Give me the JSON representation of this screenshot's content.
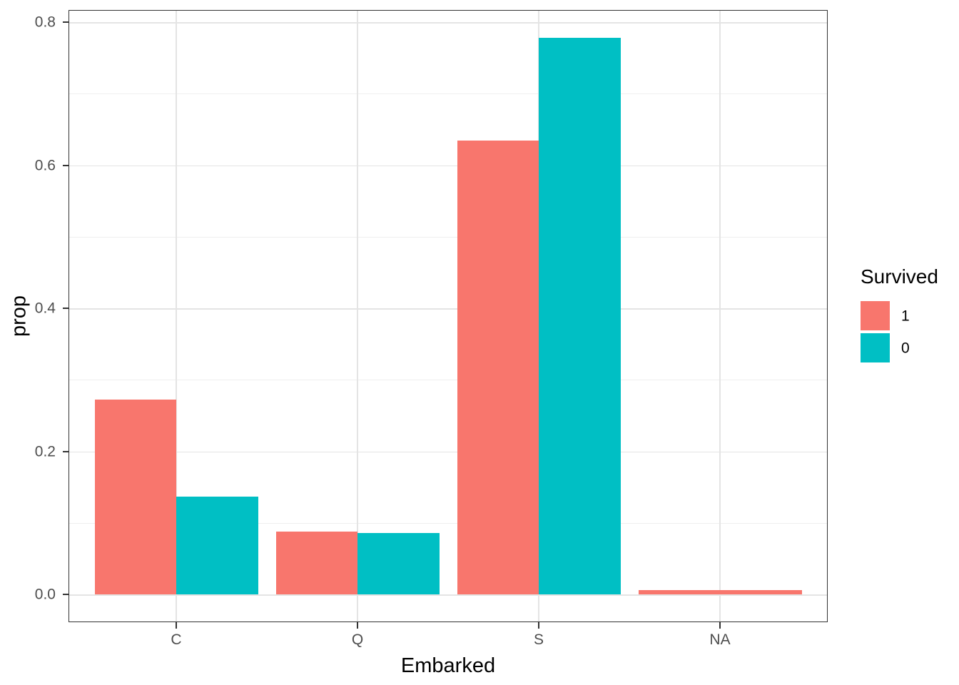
{
  "chart_data": {
    "type": "bar",
    "title": "",
    "xlabel": "Embarked",
    "ylabel": "prop",
    "categories": [
      "C",
      "Q",
      "S",
      "NA"
    ],
    "series": [
      {
        "name": "1",
        "color": "#F8766D",
        "values": [
          0.272,
          0.088,
          0.634,
          0.006
        ]
      },
      {
        "name": "0",
        "color": "#00BFC4",
        "values": [
          0.137,
          0.086,
          0.778,
          null
        ]
      }
    ],
    "legend": {
      "title": "Survived",
      "position": "right",
      "entries": [
        {
          "label": "1",
          "color": "#F8766D"
        },
        {
          "label": "0",
          "color": "#00BFC4"
        }
      ]
    },
    "x_axis": {
      "tick_labels": [
        "C",
        "Q",
        "S",
        "NA"
      ]
    },
    "y_axis": {
      "tick_labels": [
        "0.0",
        "0.2",
        "0.4",
        "0.6",
        "0.8"
      ],
      "tick_values": [
        0.0,
        0.2,
        0.4,
        0.6,
        0.8
      ],
      "minor_tick_values": [
        0.1,
        0.3,
        0.5,
        0.7
      ],
      "range": [
        -0.039,
        0.817
      ]
    },
    "grid": {
      "major": true,
      "minor_horizontal": true,
      "minor_vertical": false
    },
    "style": {
      "bar_color_survived_1": "#F8766D",
      "bar_color_survived_0": "#00BFC4",
      "grid_major_color": "#E4E4E4",
      "grid_minor_color": "#EFEFEF",
      "panel_border_color": "#333333",
      "axis_text_color": "#4D4D4D",
      "axis_title_color": "#000000",
      "background_color": "#FFFFFF"
    }
  }
}
